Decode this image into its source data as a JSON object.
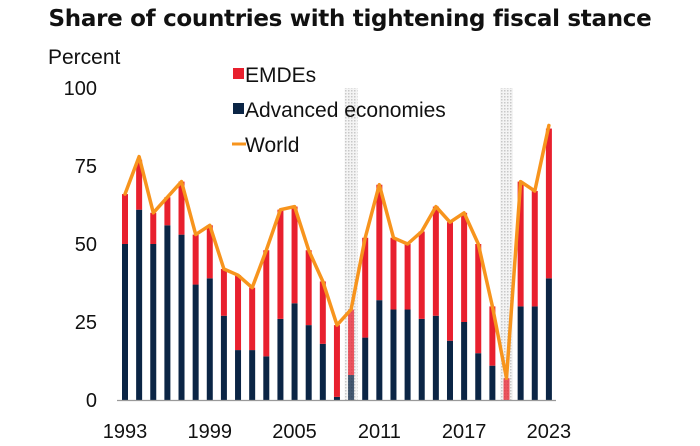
{
  "chart_data": {
    "type": "bar",
    "stacked": true,
    "title": "Share of countries with tightening fiscal stance",
    "ylabel": "Percent",
    "xlabel": "",
    "ylim": [
      0,
      100
    ],
    "yticks": [
      0,
      25,
      50,
      75,
      100
    ],
    "xtick_labels": [
      "1993",
      "1999",
      "2005",
      "2011",
      "2017",
      "2023"
    ],
    "categories": [
      "1993",
      "1994",
      "1995",
      "1996",
      "1997",
      "1998",
      "1999",
      "2000",
      "2001",
      "2002",
      "2003",
      "2004",
      "2005",
      "2006",
      "2007",
      "2008",
      "2009",
      "2010",
      "2011",
      "2012",
      "2013",
      "2014",
      "2015",
      "2016",
      "2017",
      "2018",
      "2019",
      "2020",
      "2021",
      "2022",
      "2023"
    ],
    "shaded_years": [
      "2009",
      "2020"
    ],
    "legend_position": "top-center",
    "series": [
      {
        "name": "Advanced economies",
        "type": "bar",
        "color": "#0b2545",
        "values": [
          50,
          61,
          50,
          56,
          53,
          37,
          39,
          27,
          16,
          16,
          14,
          26,
          31,
          24,
          18,
          1,
          8,
          20,
          32,
          29,
          29,
          26,
          27,
          19,
          25,
          15,
          11,
          0,
          30,
          30,
          39
        ]
      },
      {
        "name": "EMDEs",
        "type": "bar",
        "color": "#e8202e",
        "values": [
          16,
          16,
          10,
          9,
          17,
          16,
          17,
          15,
          24,
          20,
          34,
          35,
          31,
          24,
          20,
          23,
          21,
          32,
          37,
          23,
          21,
          28,
          35,
          38,
          35,
          35,
          19,
          7,
          40,
          37,
          48
        ]
      },
      {
        "name": "World",
        "type": "line",
        "color": "#f7941d",
        "values": [
          66,
          78,
          60,
          65,
          70,
          53,
          56,
          42,
          40,
          36,
          48,
          61,
          62,
          48,
          38,
          24,
          29,
          52,
          69,
          52,
          50,
          54,
          62,
          57,
          60,
          50,
          30,
          7,
          70,
          67,
          88
        ]
      }
    ]
  },
  "legend": {
    "items": [
      {
        "label": "EMDEs",
        "color": "#e8202e",
        "kind": "square"
      },
      {
        "label": "Advanced economies",
        "color": "#0b2545",
        "kind": "square"
      },
      {
        "label": "World",
        "color": "#f7941d",
        "kind": "line"
      }
    ]
  }
}
